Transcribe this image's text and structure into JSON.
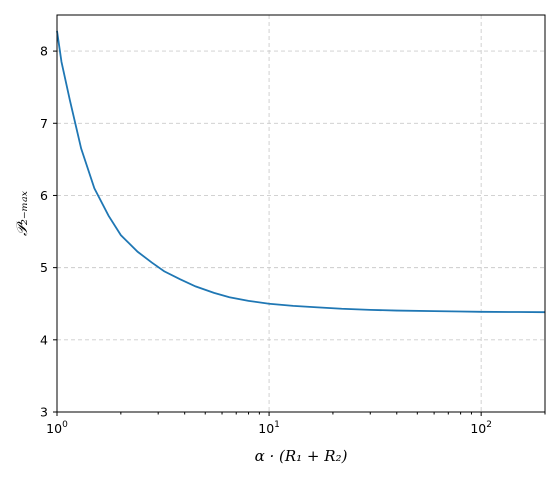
{
  "chart_data": {
    "type": "line",
    "xscale": "log",
    "xlim": [
      1,
      200
    ],
    "ylim": [
      3,
      8.5
    ],
    "xlabel": "α · (R₁ + R₂)",
    "ylabel": "𝒫₂₋ₘₐₓ",
    "grid": true,
    "x_ticks": [
      {
        "value": 1,
        "base": "10",
        "exp": "0"
      },
      {
        "value": 10,
        "base": "10",
        "exp": "1"
      },
      {
        "value": 100,
        "base": "10",
        "exp": "2"
      }
    ],
    "y_ticks": [
      {
        "value": 3,
        "label": "3"
      },
      {
        "value": 4,
        "label": "4"
      },
      {
        "value": 5,
        "label": "5"
      },
      {
        "value": 6,
        "label": "6"
      },
      {
        "value": 7,
        "label": "7"
      },
      {
        "value": 8,
        "label": "8"
      }
    ],
    "series": [
      {
        "color": "#1f77b4",
        "x": [
          1.0,
          1.05,
          1.15,
          1.3,
          1.5,
          1.75,
          2.0,
          2.4,
          2.8,
          3.2,
          3.8,
          4.5,
          5.5,
          6.5,
          8,
          10,
          13,
          17,
          22,
          30,
          40,
          60,
          80,
          100,
          150,
          200
        ],
        "y": [
          8.28,
          7.85,
          7.32,
          6.65,
          6.1,
          5.72,
          5.45,
          5.22,
          5.07,
          4.95,
          4.84,
          4.74,
          4.65,
          4.59,
          4.54,
          4.5,
          4.47,
          4.45,
          4.43,
          4.415,
          4.405,
          4.398,
          4.392,
          4.388,
          4.385,
          4.383
        ]
      }
    ]
  }
}
